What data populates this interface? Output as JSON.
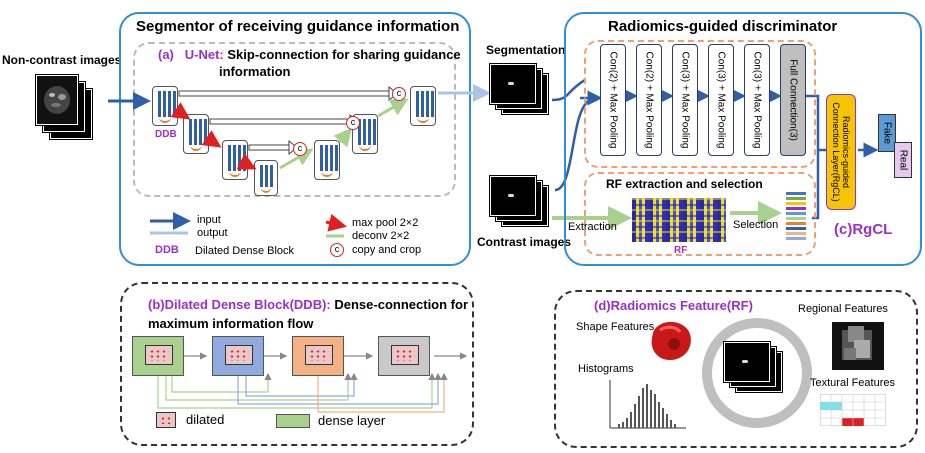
{
  "labels": {
    "non_contrast": "Non-contrast images",
    "segmentation": "Segmentation",
    "contrast": "Contrast images",
    "extraction": "Extraction",
    "selection": "Selection",
    "rf_small": "RF"
  },
  "segmentor": {
    "title": "Segmentor of receiving guidance information",
    "unet_prefix": "(a)",
    "unet_name": "U-Net:",
    "unet_desc_line1": "Skip-connection for sharing guidance",
    "unet_desc_line2": "information",
    "ddb_label": "DDB",
    "copy_glyph": "c"
  },
  "legend": {
    "input": "input",
    "output": "output",
    "ddb": "DDB",
    "ddb_full": "Dilated Dense Block",
    "max_pool": "max pool 2×2",
    "deconv": "deconv   2×2",
    "copy": "copy and crop",
    "copy_glyph": "c"
  },
  "discriminator": {
    "title": "Radiomics-guided discriminator",
    "conv_layers": [
      "Con(2) + Max Pooling",
      "Con(2) + Max Pooling",
      "Con(3) + Max Pooling",
      "Con(3) + Max Pooling",
      "Con(3) + Max Pooling",
      "Full Connection(3)"
    ],
    "rf_title": "RF extraction and selection",
    "rgcl_box": "Radiomics-guided Connection Layer(RgCL)",
    "rgcl_label": "(c)RgCL",
    "fake": "Fake",
    "real": "Real"
  },
  "ddb_panel": {
    "title_prefix": "(b)Dilated Dense Block(DDB):",
    "title_rest": "Dense-connection for",
    "title_line2": "maximum information flow",
    "dilated": "dilated",
    "dense_layer": "dense layer",
    "colors": [
      "#a9d18e",
      "#8faadc",
      "#f4b183",
      "#c9c9c9"
    ]
  },
  "rf_panel": {
    "title": "(d)Radiomics Feature(RF)",
    "shape": "Shape Features",
    "regional": "Regional Features",
    "histograms": "Histograms",
    "textural": "Textural Features"
  },
  "colors": {
    "panel_border": "#2f8fd8",
    "purple": "#9b30c8",
    "orange_dash": "#f0a070",
    "input_arrow": "#2f5fa8",
    "output_arrow": "#a9c4e6",
    "max_pool": "#e02020",
    "deconv": "#a9d18e",
    "rgcl": "#f7c400"
  }
}
